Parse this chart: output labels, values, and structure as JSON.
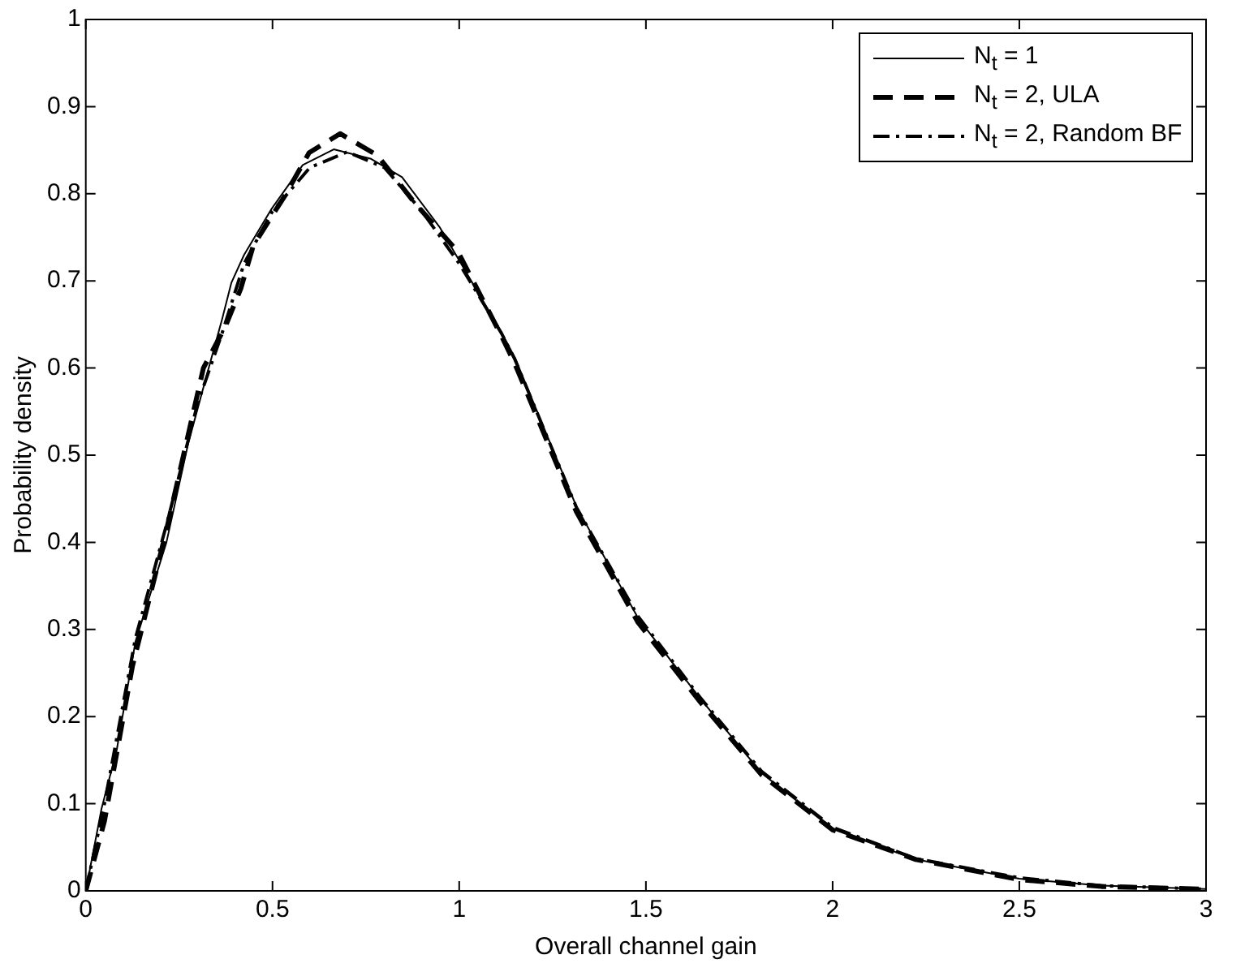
{
  "chart_data": {
    "type": "line",
    "xlabel": "Overall channel gain",
    "ylabel": "Probability density",
    "xlim": [
      0,
      3
    ],
    "xticks": [
      0,
      0.5,
      1,
      1.5,
      2,
      2.5,
      3
    ],
    "ylim": [
      0,
      1
    ],
    "yticks": [
      0,
      0.1,
      0.2,
      0.3,
      0.4,
      0.5,
      0.6,
      0.7,
      0.8,
      0.9,
      1
    ],
    "grid": false,
    "legend": "top right",
    "marker": "none",
    "series": [
      {
        "name": "N$_{t}$ = 1",
        "color": "#000000",
        "line_style": "solid",
        "x": [
          0,
          0.042,
          0.083,
          0.133,
          0.216,
          0.274,
          0.324,
          0.365,
          0.39,
          0.424,
          0.498,
          0.581,
          0.664,
          0.764,
          0.847,
          0.947,
          1.113,
          1.149,
          1.314,
          1.479,
          1.645,
          1.81,
          2.0,
          2.223,
          2.5,
          2.72,
          3
        ],
        "values": [
          0,
          0.094,
          0.162,
          0.286,
          0.4,
          0.513,
          0.592,
          0.656,
          0.698,
          0.73,
          0.783,
          0.833,
          0.851,
          0.84,
          0.819,
          0.762,
          0.641,
          0.612,
          0.441,
          0.313,
          0.221,
          0.135,
          0.071,
          0.036,
          0.014,
          0.006,
          0.002
        ]
      },
      {
        "name": "N$_{t}$ = 2, ULA",
        "color": "#000000",
        "line_style": "dashed",
        "x": [
          0,
          0.05,
          0.125,
          0.216,
          0.315,
          0.374,
          0.415,
          0.449,
          0.532,
          0.598,
          0.681,
          0.781,
          0.88,
          0.997,
          1.113,
          1.149,
          1.314,
          1.479,
          1.645,
          1.81,
          2.0,
          2.223,
          2.5,
          2.72,
          3
        ],
        "values": [
          0,
          0.08,
          0.258,
          0.414,
          0.6,
          0.648,
          0.691,
          0.741,
          0.797,
          0.847,
          0.869,
          0.844,
          0.79,
          0.733,
          0.637,
          0.605,
          0.435,
          0.308,
          0.217,
          0.133,
          0.07,
          0.036,
          0.013,
          0.005,
          0.002
        ]
      },
      {
        "name": "N$_{t}$ = 2, Random BF",
        "color": "#000000",
        "line_style": "dashdot",
        "x": [
          0,
          0.05,
          0.133,
          0.216,
          0.3,
          0.365,
          0.424,
          0.5,
          0.6,
          0.7,
          0.8,
          0.9,
          1.0,
          1.113,
          1.149,
          1.314,
          1.479,
          1.645,
          1.81,
          2.0,
          2.223,
          2.5,
          2.72,
          3
        ],
        "values": [
          0,
          0.1,
          0.29,
          0.42,
          0.56,
          0.64,
          0.72,
          0.78,
          0.83,
          0.848,
          0.83,
          0.78,
          0.72,
          0.64,
          0.61,
          0.44,
          0.315,
          0.222,
          0.137,
          0.073,
          0.037,
          0.015,
          0.006,
          0.002
        ]
      }
    ]
  }
}
